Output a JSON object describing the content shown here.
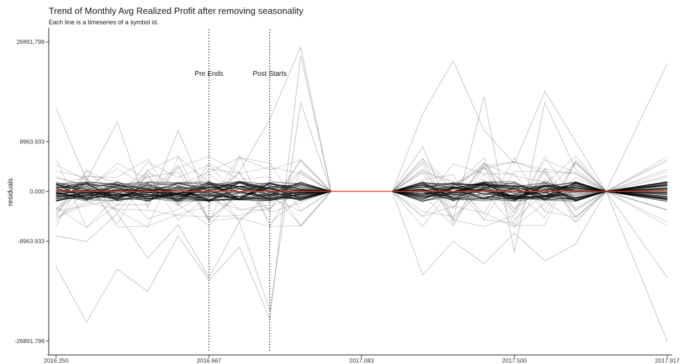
{
  "chart_data": {
    "type": "line",
    "title": "Trend of Monthly Avg Realized Profit after removing seasonality",
    "subtitle": "Each line is a timeseries of a symbol id.",
    "xlabel": "",
    "ylabel": "residuals",
    "xlim": [
      2016.23,
      2017.93
    ],
    "ylim": [
      -28800,
      28800
    ],
    "x_ticks": [
      2016.25,
      2016.667,
      2017.083,
      2017.5,
      2017.917
    ],
    "x_tick_labels": [
      "2016.250",
      "2016.667",
      "2017.083",
      "2017.500",
      "2017.917"
    ],
    "y_ticks": [
      26891.799,
      8963.933,
      0,
      -8963.933,
      -26891.799
    ],
    "y_tick_labels": [
      "26891.799",
      "8963.933",
      "0.000",
      "-8963.933",
      "-26891.799"
    ],
    "vlines": [
      {
        "x": 2016.667,
        "label": "Pre Ends",
        "style": "dotted"
      },
      {
        "x": 2016.833,
        "label": "Post Starts",
        "style": "dotted"
      }
    ],
    "x_segment_1": [
      2016.25,
      2016.333,
      2016.417,
      2016.5,
      2016.583,
      2016.667,
      2016.75,
      2016.833,
      2016.917,
      2017.0
    ],
    "x_gap": [
      2017.0,
      2017.167
    ],
    "x_segment_2": [
      2017.167,
      2017.25,
      2017.333,
      2017.417,
      2017.5,
      2017.583,
      2017.667,
      2017.75,
      2017.75,
      2017.917
    ],
    "series": [
      {
        "name": "",
        "x": [
          2016.25,
          2016.333,
          2016.417,
          2016.5,
          2016.583,
          2016.667,
          2016.75,
          2016.833,
          2016.917,
          2017.0
        ],
        "values": [
          15000,
          2000,
          12500,
          -3000,
          11000,
          -2000,
          3500,
          13000,
          26000,
          0
        ]
      },
      {
        "name": "",
        "x": [
          2016.25,
          2016.333,
          2016.417,
          2016.5,
          2016.583,
          2016.667,
          2016.75,
          2016.833,
          2016.917,
          2017.0
        ],
        "values": [
          -13500,
          -23500,
          -14000,
          -18000,
          -8000,
          -16000,
          -10000,
          -23000,
          24500,
          0
        ]
      },
      {
        "name": "",
        "x": [
          2016.25,
          2016.333,
          2016.417,
          2016.5,
          2016.583,
          2016.667,
          2016.75,
          2016.833,
          2016.917,
          2017.0
        ],
        "values": [
          -8000,
          -9000,
          -4000,
          -12000,
          -6000,
          -15500,
          -5500,
          -21500,
          16000,
          0
        ]
      },
      {
        "name": "",
        "x": [
          2017.167,
          2017.25,
          2017.333,
          2017.417,
          2017.5,
          2017.583,
          2017.667,
          2017.75,
          2017.917
        ],
        "values": [
          0,
          14000,
          23500,
          11000,
          5000,
          18000,
          9000,
          0,
          23000
        ]
      },
      {
        "name": "",
        "x": [
          2017.167,
          2017.25,
          2017.333,
          2017.417,
          2017.5,
          2017.583,
          2017.667,
          2017.75,
          2017.917
        ],
        "values": [
          0,
          -15000,
          -9000,
          -13000,
          -7500,
          -12500,
          -9500,
          0,
          -27000
        ]
      },
      {
        "name": "",
        "x": [
          2017.167,
          2017.25,
          2017.333,
          2017.417,
          2017.5,
          2017.583,
          2017.667,
          2017.75,
          2017.917
        ],
        "values": [
          0,
          8000,
          -5000,
          17000,
          -11000,
          16000,
          4000,
          0,
          -15500
        ]
      }
    ],
    "mean_line": {
      "x": [
        2016.25,
        2017.917
      ],
      "values": [
        0,
        0
      ],
      "color": "#e8462a"
    },
    "colors": {
      "lines": "#000000",
      "mean": "#e8462a",
      "vline": "#333333"
    },
    "grid": false,
    "legend": "none",
    "bundle_count_note": ""
  }
}
